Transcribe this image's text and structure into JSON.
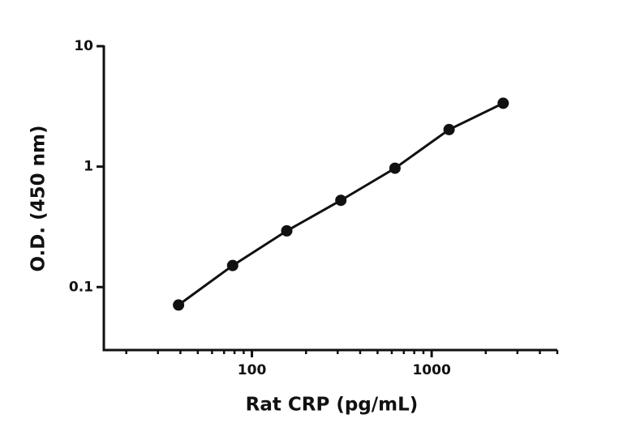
{
  "chart_data": {
    "type": "scatter",
    "x_label": "Rat CRP (pg/mL)",
    "y_label": "O.D. (450 nm)",
    "x": [
      39.06,
      78.13,
      156.25,
      312.5,
      625,
      1250,
      2500
    ],
    "values": [
      0.071,
      0.151,
      0.293,
      0.525,
      0.97,
      2.03,
      3.36
    ],
    "color": "#111111",
    "line": true,
    "x_log": true,
    "y_log": true,
    "xlim": [
      15,
      5000
    ],
    "xticks": [
      100,
      1000
    ],
    "ylim": [
      0.03,
      10
    ],
    "yticks": [
      0.1,
      1,
      10
    ]
  }
}
